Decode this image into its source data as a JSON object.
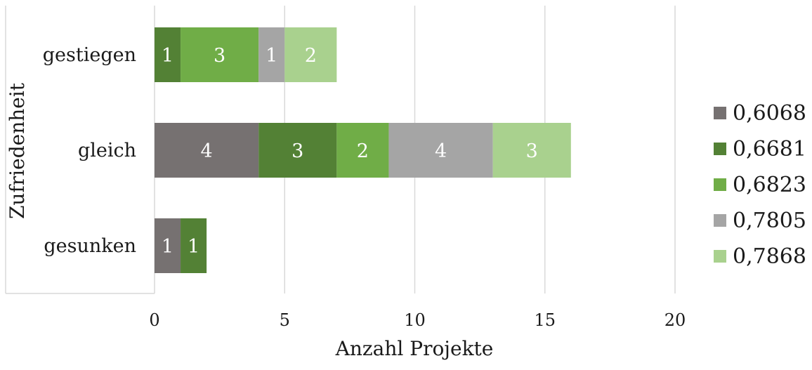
{
  "chart_data": {
    "type": "bar",
    "orientation": "horizontal",
    "stacked": true,
    "categories": [
      "gestiegen",
      "gleich",
      "gesunken"
    ],
    "series": [
      {
        "name": "0,6068",
        "color": "#767171",
        "values": [
          0,
          4,
          1
        ]
      },
      {
        "name": "0,6681",
        "color": "#538135",
        "values": [
          1,
          3,
          1
        ]
      },
      {
        "name": "0,6823",
        "color": "#70ad47",
        "values": [
          3,
          2,
          0
        ]
      },
      {
        "name": "0,7805",
        "color": "#a5a5a5",
        "values": [
          1,
          4,
          0
        ]
      },
      {
        "name": "0,7868",
        "color": "#a9d18e",
        "values": [
          2,
          3,
          0
        ]
      }
    ],
    "xlabel": "Anzahl Projekte",
    "ylabel": "Zufriedenheit",
    "xlim": [
      0,
      20
    ],
    "xticks": [
      "0",
      "5",
      "10",
      "15",
      "20"
    ],
    "grid": true,
    "legend_position": "right",
    "data_labels": true
  }
}
